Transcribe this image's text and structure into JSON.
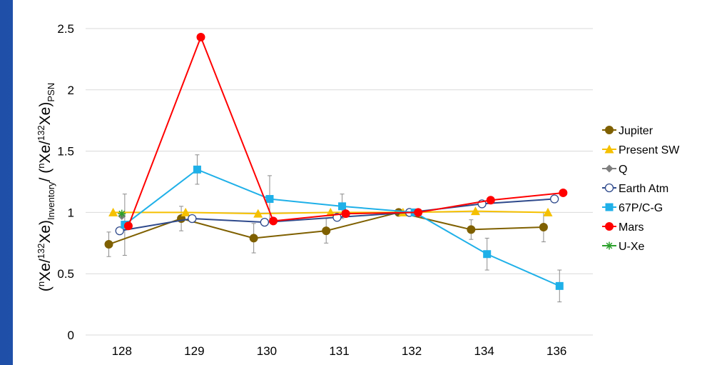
{
  "chart_data": {
    "type": "line",
    "title": "",
    "xlabel": "",
    "ylabel_parts": {
      "open1": "(",
      "sup_n1": "n",
      "xe1": "Xe/",
      "sup_132_1": "132",
      "xe2": "Xe)",
      "sub_inventory": "Inventory",
      "slash": "/ (",
      "sup_n2": "n",
      "xe3": "Xe/",
      "sup_132_2": "132",
      "xe4": "Xe)",
      "sub_psn": "PSN"
    },
    "categories": [
      "128",
      "129",
      "130",
      "131",
      "132",
      "134",
      "136"
    ],
    "ylim": [
      0,
      2.5
    ],
    "yticks": [
      "0",
      "0.5",
      "1",
      "1.5",
      "2",
      "2.5"
    ],
    "grid": true,
    "legend_position": "right",
    "series": [
      {
        "name": "Jupiter",
        "color": "#7f6000",
        "marker": "circle-filled",
        "offset": -0.18,
        "values": [
          0.74,
          0.95,
          0.79,
          0.85,
          1.0,
          0.86,
          0.88
        ],
        "errors": [
          0.1,
          0.1,
          0.12,
          0.1,
          0.0,
          0.08,
          0.12
        ]
      },
      {
        "name": "Present SW",
        "color": "#f5c000",
        "marker": "triangle",
        "offset": -0.12,
        "values": [
          1.0,
          1.0,
          0.99,
          1.0,
          1.0,
          1.01,
          1.0
        ],
        "errors": null
      },
      {
        "name": "Q",
        "color": "#7f7f7f",
        "marker": "diamond",
        "offset": 0.0,
        "values": [
          0.97,
          null,
          null,
          null,
          null,
          null,
          null
        ],
        "errors": null
      },
      {
        "name": "Earth Atm",
        "color": "#2f4a8c",
        "marker": "circle-open",
        "offset": -0.03,
        "values": [
          0.85,
          0.95,
          0.92,
          0.96,
          1.0,
          1.07,
          1.11
        ],
        "errors": null
      },
      {
        "name": "67P/C-G",
        "color": "#1fb0e8",
        "marker": "square",
        "offset": 0.04,
        "values": [
          0.9,
          1.35,
          1.11,
          1.05,
          1.0,
          0.66,
          0.4
        ],
        "errors": [
          0.25,
          0.12,
          0.19,
          0.1,
          0.0,
          0.13,
          0.13
        ]
      },
      {
        "name": "Mars",
        "color": "#ff0000",
        "marker": "circle-filled",
        "offset": 0.09,
        "values": [
          0.89,
          2.43,
          0.93,
          0.99,
          1.0,
          1.1,
          1.16
        ],
        "errors": null
      },
      {
        "name": "U-Xe",
        "color": "#2ca02c",
        "marker": "asterisk",
        "offset": 0.0,
        "values": [
          0.99,
          null,
          null,
          null,
          null,
          null,
          null
        ],
        "errors": null
      }
    ]
  }
}
